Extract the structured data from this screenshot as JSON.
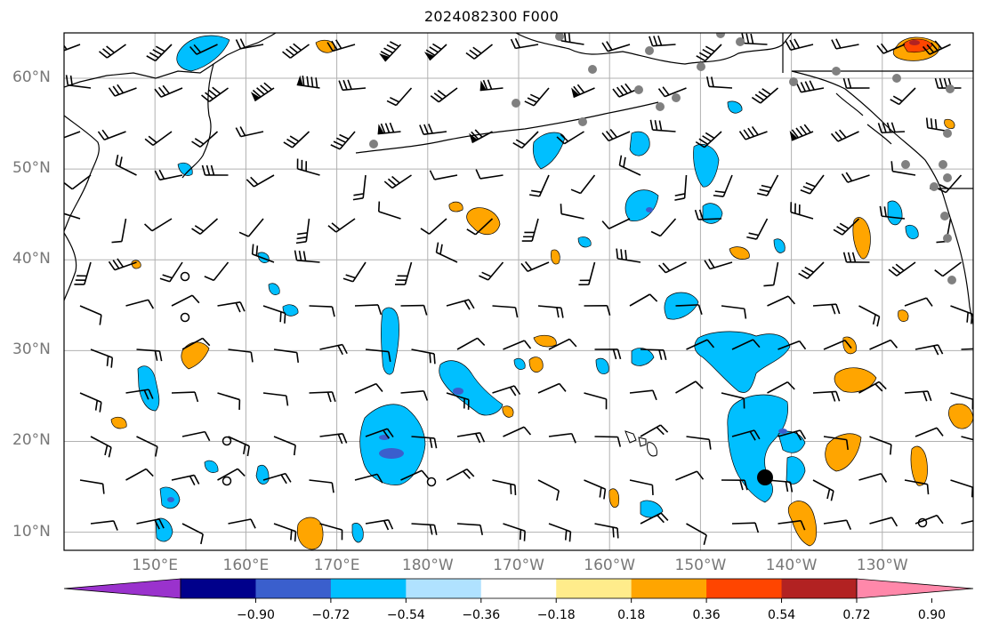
{
  "title": "2024082300 F000",
  "map": {
    "lat_labels": [
      "60°N",
      "50°N",
      "40°N",
      "30°N",
      "20°N",
      "10°N"
    ],
    "lon_labels": [
      "150°E",
      "160°E",
      "170°E",
      "180°W",
      "170°W",
      "160°W",
      "150°W",
      "140°W",
      "130°W"
    ],
    "extent": {
      "lon_min": 140,
      "lon_max": 240,
      "lat_min": 8,
      "lat_max": 65
    },
    "gridlines": true,
    "colors": {
      "coast": "#000000",
      "grid": "#b0b0b0",
      "frame": "#000000"
    }
  },
  "colorbar": {
    "labels": [
      "−0.90",
      "−0.72",
      "−0.54",
      "−0.36",
      "−0.18",
      "0.18",
      "0.36",
      "0.54",
      "0.72",
      "0.90"
    ],
    "colors": [
      "#9a32cd",
      "#00008b",
      "#3a5fcd",
      "#00bfff",
      "#b0e2ff",
      "#ffffff",
      "#ffec8b",
      "#ffa500",
      "#ff4500",
      "#b22222",
      "#ff88aa"
    ],
    "extend": "both"
  },
  "markers": {
    "main_low": {
      "lon": 217,
      "lat": 16,
      "label": ""
    }
  }
}
